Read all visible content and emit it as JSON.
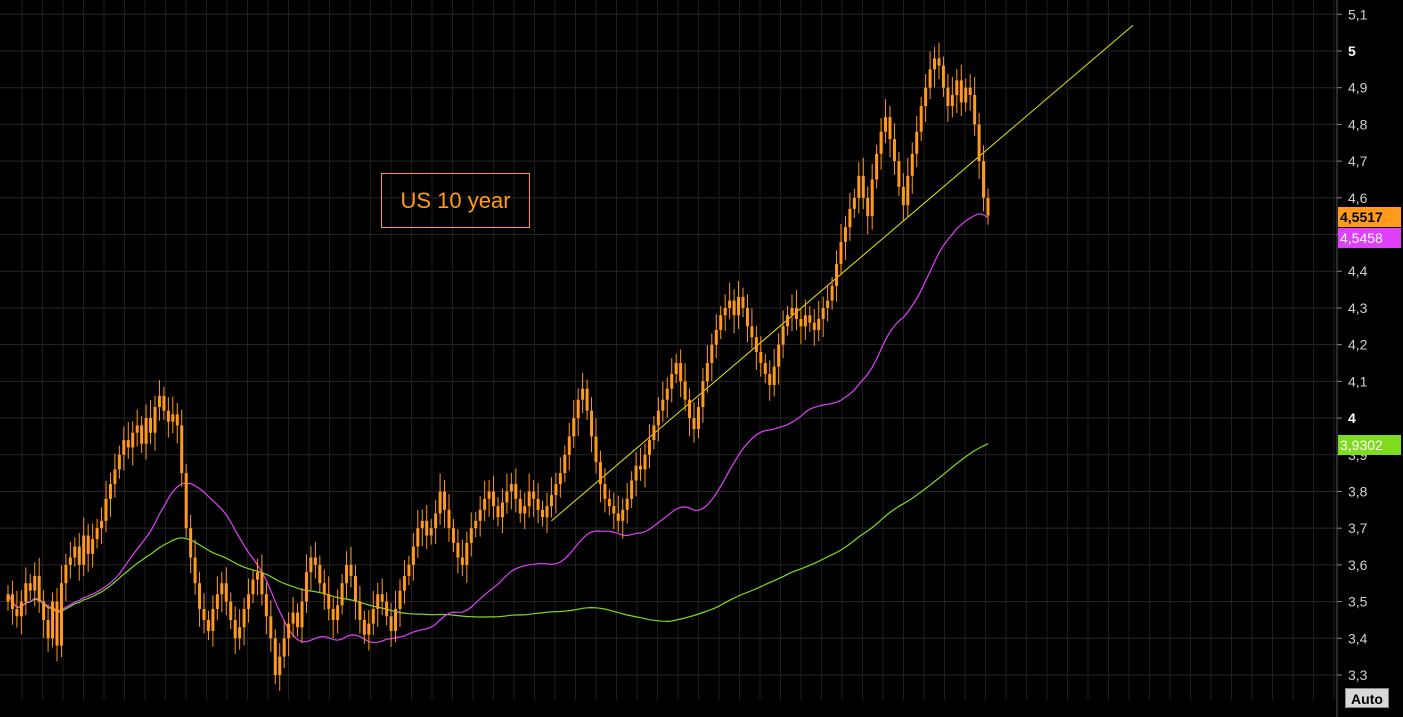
{
  "chart_data": {
    "type": "candlestick",
    "title": "US 10 year",
    "y_ticks": [
      "5,1",
      "5",
      "4,9",
      "4,8",
      "4,7",
      "4,6",
      "4,5",
      "4,4",
      "4,3",
      "4,2",
      "4,1",
      "4",
      "3,9",
      "3,8",
      "3,7",
      "3,6",
      "3,5",
      "3,4",
      "3,3"
    ],
    "y_tick_values": [
      5.1,
      5.0,
      4.9,
      4.8,
      4.7,
      4.6,
      4.5,
      4.4,
      4.3,
      4.2,
      4.1,
      4.0,
      3.9,
      3.8,
      3.7,
      3.6,
      3.5,
      3.4,
      3.3
    ],
    "ylim": [
      3.25,
      5.13
    ],
    "grid": true,
    "closes": [
      3.52,
      3.48,
      3.46,
      3.5,
      3.55,
      3.53,
      3.57,
      3.5,
      3.45,
      3.4,
      3.5,
      3.38,
      3.55,
      3.6,
      3.62,
      3.65,
      3.6,
      3.68,
      3.63,
      3.67,
      3.7,
      3.72,
      3.78,
      3.82,
      3.86,
      3.9,
      3.94,
      3.92,
      3.96,
      3.98,
      3.93,
      4.0,
      3.96,
      4.03,
      4.06,
      4.02,
      3.99,
      4.01,
      3.98,
      3.85,
      3.7,
      3.62,
      3.55,
      3.48,
      3.45,
      3.42,
      3.48,
      3.52,
      3.55,
      3.5,
      3.45,
      3.4,
      3.43,
      3.48,
      3.52,
      3.56,
      3.58,
      3.52,
      3.46,
      3.4,
      3.3,
      3.35,
      3.4,
      3.44,
      3.47,
      3.43,
      3.5,
      3.58,
      3.62,
      3.6,
      3.55,
      3.52,
      3.48,
      3.45,
      3.49,
      3.55,
      3.6,
      3.57,
      3.5,
      3.45,
      3.41,
      3.44,
      3.48,
      3.52,
      3.5,
      3.46,
      3.42,
      3.48,
      3.53,
      3.57,
      3.6,
      3.65,
      3.7,
      3.72,
      3.68,
      3.7,
      3.74,
      3.8,
      3.75,
      3.7,
      3.66,
      3.62,
      3.6,
      3.66,
      3.7,
      3.72,
      3.75,
      3.78,
      3.8,
      3.76,
      3.73,
      3.77,
      3.8,
      3.82,
      3.78,
      3.74,
      3.76,
      3.8,
      3.78,
      3.75,
      3.73,
      3.76,
      3.79,
      3.82,
      3.85,
      3.9,
      3.95,
      4.0,
      4.05,
      4.08,
      4.02,
      3.95,
      3.88,
      3.82,
      3.78,
      3.76,
      3.74,
      3.72,
      3.75,
      3.78,
      3.83,
      3.87,
      3.86,
      3.9,
      3.94,
      3.98,
      4.02,
      4.05,
      4.08,
      4.12,
      4.15,
      4.1,
      4.05,
      4.0,
      3.97,
      4.03,
      4.1,
      4.15,
      4.2,
      4.24,
      4.28,
      4.3,
      4.32,
      4.28,
      4.33,
      4.3,
      4.25,
      4.22,
      4.18,
      4.15,
      4.12,
      4.09,
      4.14,
      4.2,
      4.25,
      4.28,
      4.3,
      4.27,
      4.25,
      4.28,
      4.26,
      4.24,
      4.27,
      4.3,
      4.32,
      4.36,
      4.42,
      4.48,
      4.52,
      4.57,
      4.6,
      4.66,
      4.6,
      4.55,
      4.65,
      4.72,
      4.78,
      4.82,
      4.76,
      4.7,
      4.63,
      4.58,
      4.66,
      4.72,
      4.78,
      4.85,
      4.9,
      4.95,
      4.98,
      4.96,
      4.9,
      4.85,
      4.88,
      4.92,
      4.86,
      4.9,
      4.88,
      4.8,
      4.7,
      4.6,
      4.5517
    ],
    "indicators": [
      {
        "label": "4,5458",
        "value": 4.5458,
        "color": "#e040fb"
      },
      {
        "label": "3,9302",
        "value": 3.9302,
        "color": "#7ddc1f"
      }
    ],
    "last_price": {
      "label": "4,5517",
      "value": 4.5517,
      "color": "#ff9a1a"
    },
    "colors": {
      "candle": "#ff9a1a",
      "ma_short": "#e040fb",
      "ma_long": "#7ddc1f",
      "trendline": "#e6e600"
    }
  },
  "labels": {
    "title": "US 10 year",
    "price_badge": "4,5517",
    "ma_short_badge": "4,5458",
    "ma_long_badge": "3,9302",
    "auto_button": "Auto"
  }
}
